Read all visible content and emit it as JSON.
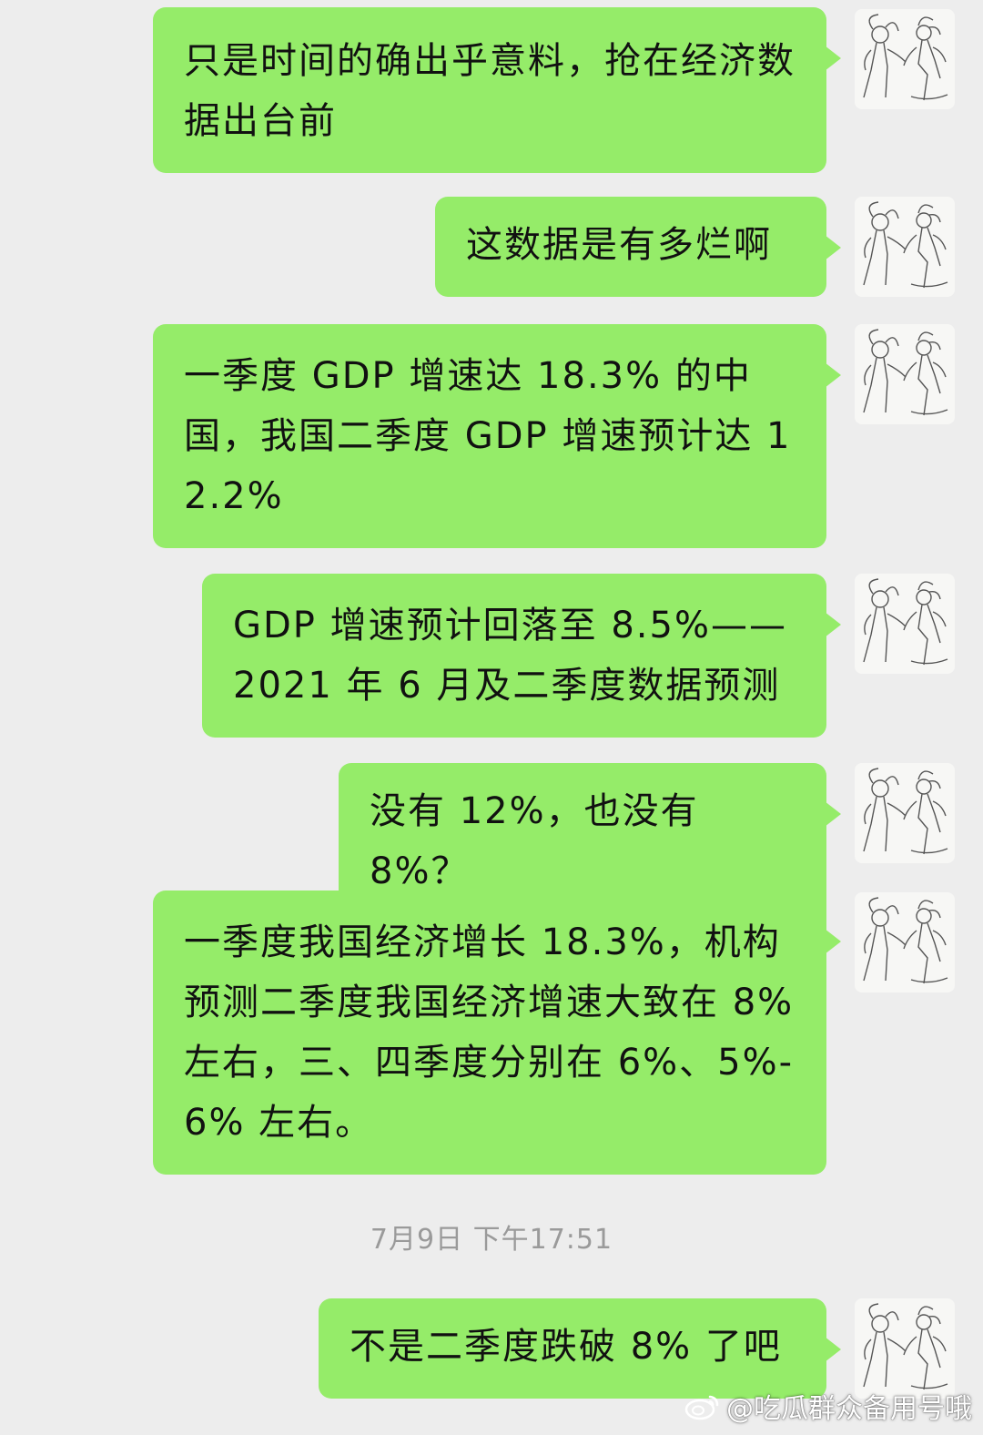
{
  "messages": [
    {
      "text": "只是时间的确出乎意料，抢在经济数据出台前"
    },
    {
      "text": "这数据是有多烂啊"
    },
    {
      "text": "一季度 GDP 增速达 18.3% 的中国，我国二季度 GDP 增速预计达 12.2%"
    },
    {
      "text": "GDP 增速预计回落至 8.5%——2021 年 6 月及二季度数据预测"
    },
    {
      "text": "没有 12%，也没有 8%？"
    },
    {
      "text": "一季度我国经济增长 18.3%，机构预测二季度我国经济增速大致在 8% 左右，三、四季度分别在 6%、5%-6% 左右。"
    },
    {
      "text": "不是二季度跌破 8% 了吧"
    }
  ],
  "timestamp": "7月9日 下午17:51",
  "watermark": "@吃瓜群众备用号哦",
  "colors": {
    "background": "#ededed",
    "bubble": "#95ec69",
    "timestamp": "#9a9a9a"
  }
}
